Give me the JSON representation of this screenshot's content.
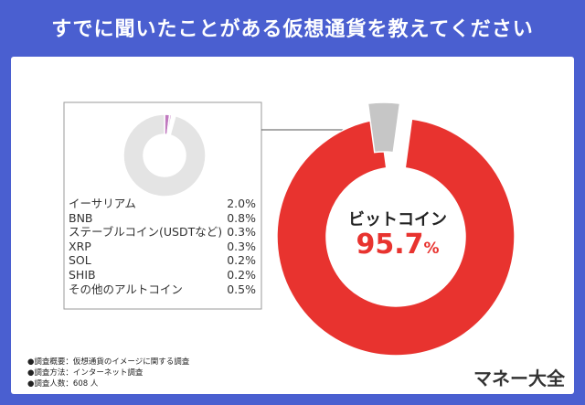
{
  "title": "すでに聞いたことがある仮想通貨を教えてください",
  "chart_data": [
    {
      "type": "pie",
      "style": "donut",
      "categories": [
        "ビットコイン",
        "その他"
      ],
      "values": [
        95.7,
        4.3
      ],
      "colors": [
        "#e8332f",
        "#c6c6c6"
      ],
      "main_label": "ビットコイン",
      "main_value": "95.7",
      "main_unit": "%"
    },
    {
      "type": "pie",
      "style": "donut",
      "categories": [
        "イーサリアム",
        "BNB",
        "ステーブルコイン(USDTなど)",
        "XRP",
        "SOL",
        "SHIB",
        "その他のアルトコイン"
      ],
      "values": [
        2.0,
        0.8,
        0.3,
        0.3,
        0.2,
        0.2,
        0.5
      ],
      "labels": [
        "2.0%",
        "0.8%",
        "0.3%",
        "0.3%",
        "0.2%",
        "0.2%",
        "0.5%"
      ],
      "other_share": 95.7,
      "colors": [
        "#c07abf",
        "#d7a9d6",
        "#c38ac2",
        "#e6cde6",
        "#b976b8",
        "#cfa3ce",
        "#bf78be"
      ],
      "other_color": "#e4e4e4"
    }
  ],
  "notes": [
    "●調査概要：仮想通貨のイメージに関する調査",
    "●調査方法：インターネット調査",
    "●調査人数：608 人"
  ],
  "brand": "マネー大全"
}
